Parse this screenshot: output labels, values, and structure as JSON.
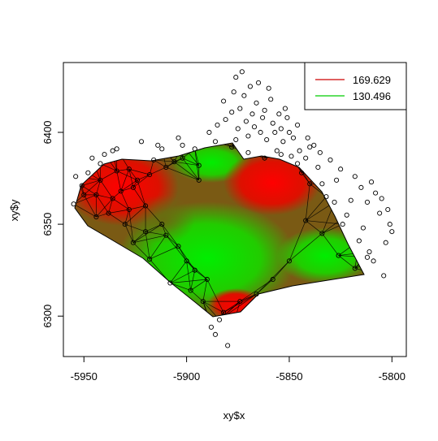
{
  "chart_data": {
    "type": "scatter",
    "title": "",
    "xlabel": "xy$x",
    "ylabel": "xy$y",
    "xlim": [
      -5960,
      -5793
    ],
    "ylim": [
      6278,
      6438
    ],
    "x_ticks": [
      -5950,
      -5900,
      -5850,
      -5800
    ],
    "y_ticks": [
      6300,
      6350,
      6400
    ],
    "x_tick_labels": [
      "-5950",
      "-5900",
      "-5850",
      "-5800"
    ],
    "y_tick_labels": [
      "6300",
      "6350",
      "6400"
    ],
    "legend": {
      "position": "top-right",
      "entries": [
        {
          "label": "169.629",
          "color": "#cc0000"
        },
        {
          "label": "130.496",
          "color": "#00cc00"
        }
      ]
    },
    "surface_color_range": {
      "high": "#ff0000",
      "low": "#00ff00"
    },
    "points": [
      [
        -5955,
        6361
      ],
      [
        -5954,
        6376
      ],
      [
        -5951,
        6371
      ],
      [
        -5948,
        6378
      ],
      [
        -5946,
        6386
      ],
      [
        -5944,
        6366
      ],
      [
        -5942,
        6374
      ],
      [
        -5940,
        6388
      ],
      [
        -5938,
        6356
      ],
      [
        -5936,
        6390
      ],
      [
        -5934,
        6391
      ],
      [
        -5932,
        6368
      ],
      [
        -5930,
        6350
      ],
      [
        -5928,
        6380
      ],
      [
        -5926,
        6340
      ],
      [
        -5924,
        6374
      ],
      [
        -5922,
        6395
      ],
      [
        -5920,
        6360
      ],
      [
        -5918,
        6331
      ],
      [
        -5916,
        6385
      ],
      [
        -5914,
        6393
      ],
      [
        -5912,
        6391
      ],
      [
        -5910,
        6344
      ],
      [
        -5908,
        6318
      ],
      [
        -5906,
        6384
      ],
      [
        -5904,
        6397
      ],
      [
        -5902,
        6393
      ],
      [
        -5900,
        6330
      ],
      [
        -5898,
        6314
      ],
      [
        -5896,
        6391
      ],
      [
        -5894,
        6374
      ],
      [
        -5892,
        6308
      ],
      [
        -5890,
        6320
      ],
      [
        -5889,
        6400
      ],
      [
        -5888,
        6294
      ],
      [
        -5886,
        6290
      ],
      [
        -5885,
        6404
      ],
      [
        -5884,
        6298
      ],
      [
        -5882,
        6417
      ],
      [
        -5881,
        6407
      ],
      [
        -5880,
        6284
      ],
      [
        -5878,
        6411
      ],
      [
        -5877,
        6422
      ],
      [
        -5876,
        6396
      ],
      [
        -5876,
        6430
      ],
      [
        -5875,
        6402
      ],
      [
        -5874,
        6413
      ],
      [
        -5873,
        6433
      ],
      [
        -5872,
        6420
      ],
      [
        -5871,
        6406
      ],
      [
        -5870,
        6398
      ],
      [
        -5869,
        6425
      ],
      [
        -5868,
        6410
      ],
      [
        -5867,
        6403
      ],
      [
        -5866,
        6416
      ],
      [
        -5865,
        6427
      ],
      [
        -5864,
        6400
      ],
      [
        -5863,
        6408
      ],
      [
        -5862,
        6412
      ],
      [
        -5861,
        6396
      ],
      [
        -5860,
        6424
      ],
      [
        -5859,
        6418
      ],
      [
        -5858,
        6405
      ],
      [
        -5857,
        6400
      ],
      [
        -5856,
        6390
      ],
      [
        -5855,
        6410
      ],
      [
        -5854,
        6402
      ],
      [
        -5853,
        6395
      ],
      [
        -5852,
        6413
      ],
      [
        -5851,
        6408
      ],
      [
        -5850,
        6400
      ],
      [
        -5849,
        6387
      ],
      [
        -5848,
        6397
      ],
      [
        -5846,
        6404
      ],
      [
        -5845,
        6390
      ],
      [
        -5844,
        6378
      ],
      [
        -5842,
        6386
      ],
      [
        -5841,
        6397
      ],
      [
        -5840,
        6372
      ],
      [
        -5838,
        6393
      ],
      [
        -5836,
        6381
      ],
      [
        -5835,
        6389
      ],
      [
        -5834,
        6372
      ],
      [
        -5832,
        6365
      ],
      [
        -5830,
        6385
      ],
      [
        -5828,
        6362
      ],
      [
        -5827,
        6374
      ],
      [
        -5825,
        6380
      ],
      [
        -5824,
        6350
      ],
      [
        -5822,
        6355
      ],
      [
        -5820,
        6363
      ],
      [
        -5818,
        6376
      ],
      [
        -5816,
        6341
      ],
      [
        -5815,
        6370
      ],
      [
        -5814,
        6348
      ],
      [
        -5812,
        6362
      ],
      [
        -5811,
        6335
      ],
      [
        -5810,
        6373
      ],
      [
        -5809,
        6330
      ],
      [
        -5808,
        6367
      ],
      [
        -5806,
        6356
      ],
      [
        -5805,
        6364
      ],
      [
        -5804,
        6322
      ],
      [
        -5802,
        6358
      ],
      [
        -5801,
        6350
      ],
      [
        -5800,
        6346
      ],
      [
        -5803,
        6340
      ],
      [
        -5812,
        6332
      ],
      [
        -5818,
        6326
      ],
      [
        -5826,
        6333
      ],
      [
        -5834,
        6345
      ],
      [
        -5842,
        6352
      ],
      [
        -5850,
        6330
      ],
      [
        -5858,
        6320
      ],
      [
        -5866,
        6312
      ],
      [
        -5874,
        6308
      ],
      [
        -5882,
        6302
      ],
      [
        -5896,
        6325
      ],
      [
        -5904,
        6338
      ],
      [
        -5912,
        6350
      ],
      [
        -5920,
        6346
      ],
      [
        -5928,
        6358
      ],
      [
        -5936,
        6364
      ],
      [
        -5944,
        6354
      ],
      [
        -5950,
        6366
      ],
      [
        -5840,
        6392
      ],
      [
        -5846,
        6383
      ],
      [
        -5854,
        6388
      ],
      [
        -5862,
        6386
      ],
      [
        -5870,
        6389
      ],
      [
        -5878,
        6392
      ],
      [
        -5886,
        6395
      ],
      [
        -5894,
        6382
      ],
      [
        -5902,
        6386
      ],
      [
        -5910,
        6381
      ],
      [
        -5918,
        6377
      ],
      [
        -5926,
        6370
      ],
      [
        -5934,
        6379
      ],
      [
        -5942,
        6383
      ]
    ]
  }
}
